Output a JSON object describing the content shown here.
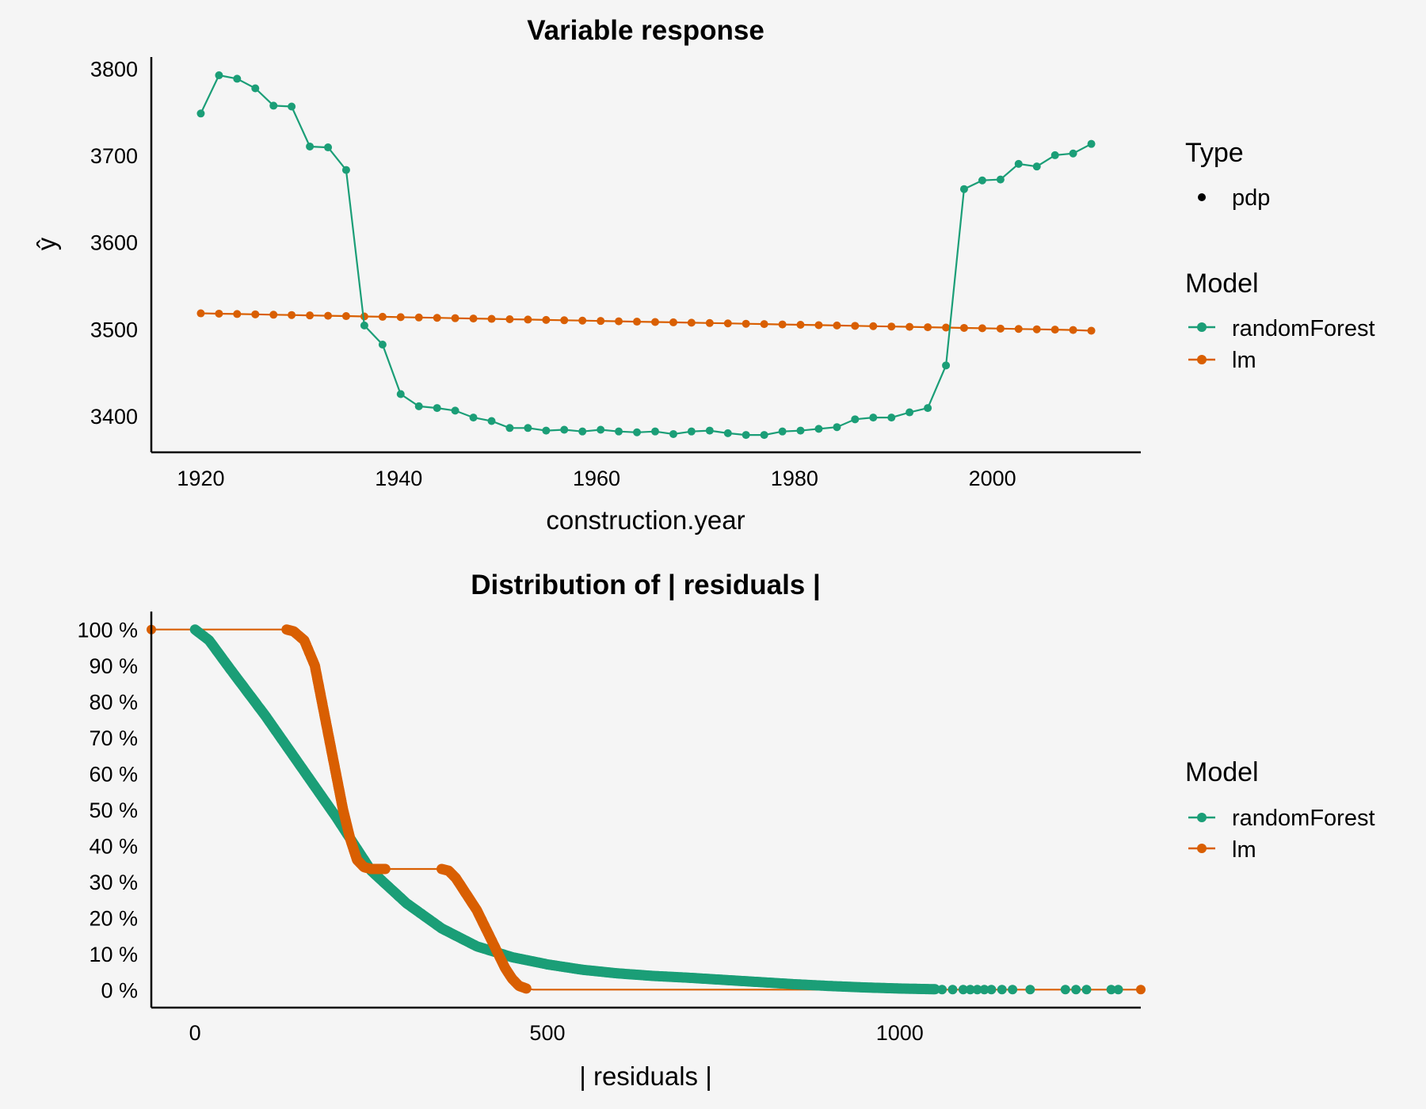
{
  "colors": {
    "randomForest": "#1b9e77",
    "lm": "#d95f02",
    "background": "#f5f5f5",
    "axis": "#000000"
  },
  "chart_data": [
    {
      "id": "variable-response",
      "type": "line",
      "title": "Variable response",
      "xlabel": "construction.year",
      "ylabel": "ŷ",
      "xlim": [
        1915,
        2015
      ],
      "ylim": [
        3358,
        3813
      ],
      "xticks": [
        1920,
        1940,
        1960,
        1980,
        2000
      ],
      "yticks": [
        3400,
        3500,
        3600,
        3700,
        3800
      ],
      "legend": {
        "position": "right",
        "type_title": "Type",
        "type_entries": [
          "pdp"
        ],
        "model_title": "Model",
        "model_entries": [
          "randomForest",
          "lm"
        ]
      },
      "x": [
        1920,
        1921.84,
        1923.67,
        1925.51,
        1927.35,
        1929.18,
        1931.02,
        1932.86,
        1934.69,
        1936.53,
        1938.37,
        1940.2,
        1942.04,
        1943.88,
        1945.71,
        1947.55,
        1949.39,
        1951.22,
        1953.06,
        1954.9,
        1956.73,
        1958.57,
        1960.41,
        1962.24,
        1964.08,
        1965.92,
        1967.76,
        1969.59,
        1971.43,
        1973.27,
        1975.1,
        1976.94,
        1978.78,
        1980.61,
        1982.45,
        1984.29,
        1986.12,
        1987.96,
        1989.8,
        1991.63,
        1993.47,
        1995.31,
        1997.14,
        1998.98,
        2000.82,
        2002.65,
        2004.49,
        2006.33,
        2008.16,
        2010
      ],
      "series": [
        {
          "name": "randomForest",
          "values": [
            3748,
            3792,
            3788,
            3777,
            3757,
            3756,
            3710,
            3709,
            3683,
            3504,
            3482,
            3425,
            3411,
            3409,
            3406,
            3398,
            3394,
            3386,
            3386,
            3383,
            3384,
            3382,
            3384,
            3382,
            3381,
            3382,
            3379,
            3382,
            3383,
            3380,
            3378,
            3378,
            3382,
            3383,
            3385,
            3387,
            3396,
            3398,
            3398,
            3404,
            3409,
            3458,
            3661,
            3671,
            3672,
            3690,
            3687,
            3700,
            3702,
            3713
          ]
        },
        {
          "name": "lm",
          "values": [
            3518,
            3517.6,
            3517.2,
            3516.8,
            3516.4,
            3516,
            3515.6,
            3515.2,
            3514.8,
            3514.4,
            3514,
            3513.6,
            3513.2,
            3512.8,
            3512.4,
            3512,
            3511.6,
            3511.2,
            3510.8,
            3510.4,
            3510,
            3509.6,
            3509.2,
            3508.8,
            3508.4,
            3508,
            3507.6,
            3507.2,
            3506.8,
            3506.4,
            3506,
            3505.6,
            3505.2,
            3504.8,
            3504.4,
            3504,
            3503.6,
            3503.2,
            3502.8,
            3502.4,
            3502,
            3501.6,
            3501.2,
            3500.8,
            3500.4,
            3500,
            3499.6,
            3499.2,
            3498.8,
            3498
          ]
        }
      ]
    },
    {
      "id": "residual-distribution",
      "type": "line",
      "title": "Distribution of | residuals |",
      "xlabel": "| residuals |",
      "ylabel": "",
      "xlim": [
        -62,
        1342
      ],
      "ylim": [
        -5,
        105
      ],
      "xticks": [
        0,
        500,
        1000
      ],
      "yticks": [
        0,
        10,
        20,
        30,
        40,
        50,
        60,
        70,
        80,
        90,
        100
      ],
      "ytick_labels": [
        "0 %",
        "10 %",
        "20 %",
        "30 %",
        "40 %",
        "50 %",
        "60 %",
        "70 %",
        "80 %",
        "90 %",
        "100 %"
      ],
      "legend": {
        "position": "right",
        "model_title": "Model",
        "model_entries": [
          "randomForest",
          "lm"
        ]
      },
      "series": [
        {
          "name": "randomForest",
          "x": [
            0,
            20,
            50,
            100,
            150,
            200,
            230,
            250,
            300,
            350,
            400,
            450,
            500,
            550,
            600,
            650,
            700,
            750,
            800,
            850,
            900,
            950,
            1000,
            1050
          ],
          "y": [
            100,
            97,
            89,
            76,
            62,
            48,
            39,
            33,
            24,
            17,
            12,
            9,
            7,
            5.5,
            4.5,
            3.8,
            3.3,
            2.7,
            2.1,
            1.5,
            1.0,
            0.6,
            0.3,
            0.1
          ],
          "outliers_x": [
            1060,
            1075,
            1090,
            1100,
            1110,
            1120,
            1130,
            1145,
            1160,
            1185,
            1235,
            1250,
            1265,
            1300,
            1310
          ]
        },
        {
          "name": "lm",
          "x": [
            -62,
            130,
            140,
            155,
            170,
            180,
            190,
            200,
            210,
            220,
            230,
            240,
            250,
            260,
            270,
            350,
            360,
            370,
            380,
            390,
            400,
            410,
            420,
            430,
            440,
            450,
            460,
            470,
            480,
            1342
          ],
          "y": [
            100,
            100,
            99.5,
            97,
            90,
            80,
            70,
            60,
            50,
            42,
            36,
            34,
            33.5,
            33.5,
            33.5,
            33.5,
            33,
            31,
            28,
            25,
            22,
            18,
            14,
            10,
            6,
            3,
            1,
            0.3,
            0,
            0
          ],
          "endpoints_x": [
            -62,
            1342
          ]
        }
      ]
    }
  ]
}
